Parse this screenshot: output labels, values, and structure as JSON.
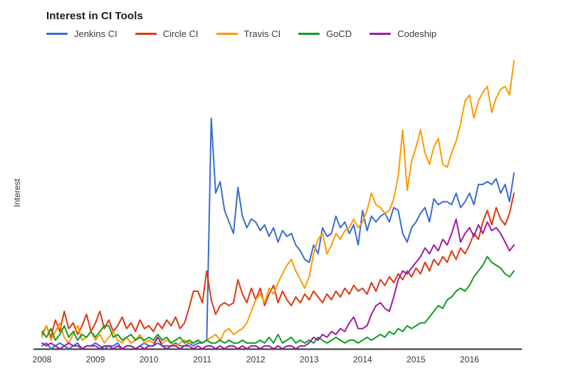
{
  "header": {
    "title": "Interest in CI Tools"
  },
  "chart_data": {
    "type": "line",
    "title": "Interest in CI Tools",
    "xlabel": "",
    "ylabel": "Interest",
    "ylim": [
      0,
      100
    ],
    "grid": false,
    "legend_position": "top-left",
    "x_range": [
      "2008-01",
      "2016-11"
    ],
    "points_per_year": 12,
    "x_tick_labels": [
      "2008",
      "2009",
      "2010",
      "2011",
      "2012",
      "2013",
      "2014",
      "2015",
      "2016"
    ],
    "axis_color": "#333333",
    "series": [
      {
        "name": "Jenkins CI",
        "color": "#3b6cd1",
        "values": [
          1,
          2,
          0,
          1,
          2,
          1,
          0,
          1,
          2,
          0,
          1,
          1,
          2,
          1,
          0,
          1,
          1,
          2,
          0,
          1,
          1,
          0,
          1,
          2,
          1,
          1,
          2,
          1,
          1,
          1,
          2,
          1,
          1,
          2,
          1,
          2,
          2,
          3,
          80,
          54,
          58,
          48,
          44,
          40,
          56,
          46,
          42,
          45,
          44,
          41,
          43,
          39,
          42,
          37,
          41,
          39,
          40,
          36,
          34,
          31,
          30,
          36,
          33,
          42,
          39,
          40,
          46,
          42,
          44,
          40,
          43,
          36,
          48,
          41,
          46,
          44,
          46,
          47,
          44,
          49,
          48,
          40,
          37,
          42,
          44,
          47,
          49,
          44,
          52,
          50,
          51,
          51,
          50,
          54,
          49,
          51,
          54,
          50,
          57,
          57,
          58,
          57,
          59,
          54,
          57,
          51,
          61
        ]
      },
      {
        "name": "Circle CI",
        "color": "#dc3912",
        "values": [
          5,
          8,
          4,
          10,
          6,
          13,
          7,
          9,
          5,
          8,
          12,
          6,
          9,
          13,
          7,
          10,
          6,
          8,
          11,
          7,
          9,
          6,
          10,
          7,
          8,
          6,
          9,
          7,
          10,
          8,
          11,
          7,
          9,
          14,
          20,
          20,
          16,
          27,
          17,
          12,
          15,
          16,
          15,
          16,
          24,
          19,
          16,
          21,
          17,
          21,
          15,
          19,
          22,
          16,
          20,
          17,
          15,
          18,
          16,
          19,
          17,
          20,
          18,
          16,
          19,
          17,
          20,
          18,
          21,
          19,
          22,
          20,
          21,
          19,
          23,
          20,
          24,
          22,
          25,
          23,
          26,
          24,
          27,
          25,
          28,
          26,
          30,
          27,
          31,
          29,
          32,
          30,
          34,
          31,
          35,
          33,
          36,
          40,
          38,
          44,
          48,
          43,
          49,
          45,
          43,
          47,
          54
        ]
      },
      {
        "name": "Travis CI",
        "color": "#ff9900",
        "values": [
          4,
          8,
          3,
          6,
          9,
          4,
          2,
          5,
          8,
          3,
          4,
          6,
          3,
          5,
          2,
          4,
          6,
          3,
          2,
          4,
          2,
          3,
          5,
          2,
          3,
          2,
          4,
          2,
          3,
          2,
          1,
          2,
          3,
          2,
          2,
          3,
          2,
          3,
          4,
          5,
          3,
          6,
          7,
          5,
          6,
          7,
          9,
          13,
          17,
          19,
          16,
          21,
          19,
          23,
          26,
          29,
          31,
          27,
          24,
          21,
          25,
          33,
          38,
          40,
          33,
          36,
          40,
          38,
          41,
          42,
          45,
          42,
          44,
          48,
          54,
          50,
          49,
          47,
          48,
          52,
          60,
          76,
          55,
          65,
          70,
          76,
          68,
          64,
          70,
          73,
          64,
          63,
          68,
          72,
          78,
          86,
          88,
          80,
          86,
          89,
          91,
          82,
          87,
          90,
          91,
          88,
          100
        ]
      },
      {
        "name": "GoCD",
        "color": "#149b24",
        "values": [
          6,
          4,
          7,
          3,
          5,
          8,
          4,
          6,
          3,
          5,
          4,
          6,
          4,
          6,
          8,
          8,
          4,
          5,
          3,
          4,
          5,
          3,
          4,
          3,
          4,
          3,
          5,
          3,
          4,
          2,
          3,
          4,
          2,
          3,
          2,
          3,
          2,
          3,
          2,
          2,
          3,
          2,
          3,
          2,
          2,
          3,
          2,
          2,
          2,
          3,
          2,
          4,
          2,
          5,
          2,
          3,
          4,
          2,
          3,
          2,
          3,
          2,
          4,
          3,
          2,
          3,
          4,
          3,
          2,
          3,
          3,
          2,
          3,
          4,
          3,
          4,
          5,
          4,
          6,
          5,
          7,
          6,
          8,
          7,
          8,
          9,
          9,
          11,
          13,
          15,
          14,
          17,
          18,
          20,
          21,
          20,
          22,
          25,
          27,
          29,
          32,
          30,
          29,
          28,
          26,
          25,
          27
        ]
      },
      {
        "name": "Codeship",
        "color": "#a01ca0",
        "values": [
          2,
          1,
          2,
          1,
          0,
          1,
          2,
          1,
          1,
          0,
          1,
          1,
          1,
          0,
          1,
          1,
          0,
          1,
          0,
          1,
          1,
          0,
          1,
          0,
          1,
          1,
          4,
          1,
          0,
          1,
          1,
          0,
          1,
          1,
          0,
          1,
          0,
          1,
          1,
          0,
          1,
          0,
          1,
          1,
          0,
          1,
          0,
          1,
          1,
          0,
          1,
          1,
          0,
          1,
          0,
          1,
          1,
          0,
          1,
          1,
          2,
          4,
          3,
          5,
          4,
          6,
          5,
          7,
          6,
          9,
          11,
          7,
          7,
          8,
          12,
          15,
          16,
          14,
          13,
          18,
          24,
          27,
          26,
          28,
          30,
          32,
          35,
          33,
          36,
          34,
          38,
          36,
          40,
          45,
          37,
          40,
          42,
          39,
          43,
          40,
          44,
          41,
          42,
          40,
          37,
          34,
          36
        ]
      }
    ]
  }
}
